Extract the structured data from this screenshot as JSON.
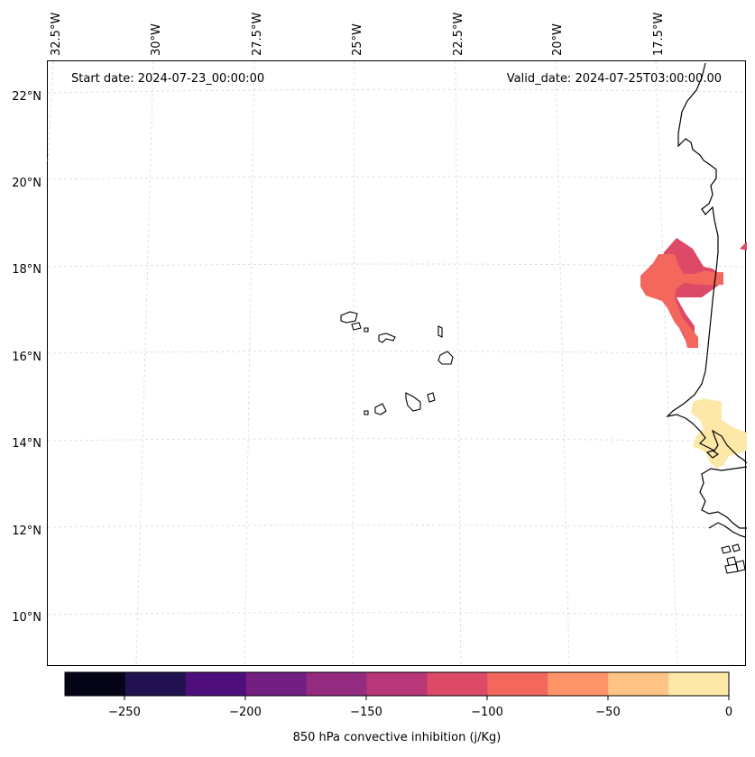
{
  "header": {
    "start_date": "Start date: 2024-07-23_00:00:00",
    "valid_date": "Valid_date: 2024-07-25T03:00:00.00"
  },
  "map": {
    "lon_labels": [
      "32.5°W",
      "30°W",
      "27.5°W",
      "25°W",
      "22.5°W",
      "20°W",
      "17.5°W"
    ],
    "lat_labels": [
      "22°N",
      "20°N",
      "18°N",
      "16°N",
      "14°N",
      "12°N",
      "10°N"
    ],
    "fill_colors": {
      "m125_m100": "#dc4a68",
      "m100_m75": "#f4675c",
      "m25_0": "#fce8a8"
    }
  },
  "colorbar": {
    "label": "850 hPa convective inhibition (j/Kg)",
    "tick_labels": [
      "−250",
      "−200",
      "−150",
      "−100",
      "−50",
      "0"
    ],
    "colors": [
      "#050417",
      "#221150",
      "#4e0f7c",
      "#721f81",
      "#932b80",
      "#b73779",
      "#dc4a68",
      "#f4675c",
      "#fd9568",
      "#fec385",
      "#fde8a8"
    ]
  }
}
